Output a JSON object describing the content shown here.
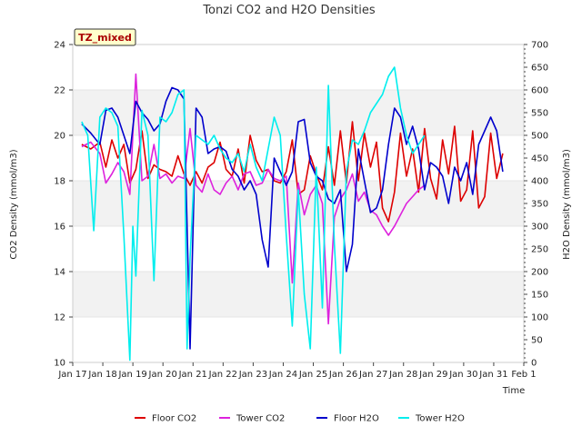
{
  "chart_data": {
    "type": "line",
    "title": "Tonzi CO2 and H2O Densities",
    "badge": "TZ_mixed",
    "xlabel": "Time",
    "ylabel_left": "CO2 Density (mmol/m3)",
    "ylabel_right": "H2O Density (mmol/m3)",
    "x_ticks": [
      "Jan 17",
      "Jan 18",
      "Jan 19",
      "Jan 20",
      "Jan 21",
      "Jan 22",
      "Jan 23",
      "Jan 24",
      "Jan 25",
      "Jan 26",
      "Jan 27",
      "Jan 28",
      "Jan 29",
      "Jan 30",
      "Jan 31",
      "Feb 1"
    ],
    "x_unit": "days since Jan 17",
    "xlim": [
      0,
      15
    ],
    "ylim_left": [
      10,
      24
    ],
    "ylim_right": [
      0,
      700
    ],
    "yticks_left": [
      "10",
      "12",
      "14",
      "16",
      "18",
      "20",
      "22",
      "24"
    ],
    "yticks_right": [
      "0",
      "50",
      "100",
      "150",
      "200",
      "250",
      "300",
      "350",
      "400",
      "450",
      "500",
      "550",
      "600",
      "650",
      "700"
    ],
    "grid_bands": true,
    "legend_position": "bottom",
    "series": [
      {
        "name": "Floor CO2",
        "axis": "left",
        "color": "#dd0000",
        "x": [
          0.3,
          0.6,
          0.9,
          1.1,
          1.3,
          1.5,
          1.7,
          1.9,
          2.1,
          2.3,
          2.5,
          2.7,
          2.9,
          3.1,
          3.3,
          3.5,
          3.7,
          3.9,
          4.1,
          4.3,
          4.5,
          4.7,
          4.9,
          5.1,
          5.3,
          5.5,
          5.7,
          5.9,
          6.1,
          6.3,
          6.5,
          6.7,
          6.9,
          7.1,
          7.3,
          7.5,
          7.7,
          7.9,
          8.1,
          8.3,
          8.5,
          8.7,
          8.9,
          9.1,
          9.3,
          9.5,
          9.7,
          9.9,
          10.1,
          10.3,
          10.5,
          10.7,
          10.9,
          11.1,
          11.3,
          11.5,
          11.7,
          11.9,
          12.1,
          12.3,
          12.5,
          12.7,
          12.9,
          13.1,
          13.3,
          13.5,
          13.7,
          13.9,
          14.1,
          14.3
        ],
        "y": [
          19.6,
          19.4,
          19.7,
          18.6,
          19.8,
          19.0,
          19.6,
          17.9,
          18.5,
          20.2,
          18.1,
          18.7,
          18.5,
          18.4,
          18.2,
          19.1,
          18.3,
          17.8,
          18.4,
          17.9,
          18.6,
          18.8,
          19.7,
          18.5,
          18.2,
          19.4,
          17.9,
          20.0,
          18.9,
          18.4,
          18.5,
          18.0,
          17.9,
          18.4,
          19.8,
          17.4,
          17.6,
          19.1,
          18.3,
          17.6,
          19.5,
          17.8,
          20.2,
          17.9,
          20.6,
          18.0,
          20.1,
          18.6,
          19.7,
          16.8,
          16.2,
          17.5,
          20.1,
          18.2,
          19.4,
          17.5,
          20.3,
          18.1,
          17.2,
          19.8,
          18.3,
          20.4,
          17.1,
          17.6,
          20.2,
          16.8,
          17.3,
          20.1,
          18.1,
          19.2
        ]
      },
      {
        "name": "Tower CO2",
        "axis": "left",
        "color": "#dd22dd",
        "x": [
          0.3,
          0.6,
          0.9,
          1.1,
          1.3,
          1.5,
          1.7,
          1.9,
          2.1,
          2.3,
          2.5,
          2.7,
          2.9,
          3.1,
          3.3,
          3.5,
          3.7,
          3.9,
          4.1,
          4.3,
          4.5,
          4.7,
          4.9,
          5.1,
          5.3,
          5.5,
          5.7,
          5.9,
          6.1,
          6.3,
          6.5,
          6.7,
          6.9,
          7.1,
          7.3,
          7.5,
          7.7,
          7.9,
          8.1,
          8.3,
          8.5,
          8.7,
          8.9,
          9.1,
          9.3,
          9.5,
          9.7,
          9.9,
          10.1,
          10.3,
          10.5,
          10.7,
          10.9,
          11.1,
          11.3,
          11.5,
          11.7
        ],
        "y": [
          19.5,
          19.7,
          19.2,
          17.9,
          18.3,
          18.8,
          18.4,
          17.4,
          22.7,
          18.0,
          18.2,
          19.6,
          18.1,
          18.3,
          17.9,
          18.2,
          18.1,
          20.3,
          17.8,
          17.5,
          18.3,
          17.6,
          17.4,
          17.9,
          18.2,
          17.6,
          18.3,
          18.4,
          17.8,
          17.9,
          18.5,
          18.1,
          18.0,
          18.2,
          13.5,
          17.9,
          16.5,
          17.4,
          17.8,
          17.0,
          11.7,
          16.4,
          17.2,
          17.6,
          18.3,
          17.1,
          17.5,
          16.7,
          16.5,
          16.0,
          15.6,
          16.0,
          16.5,
          17.0,
          17.3,
          17.6,
          17.8
        ]
      },
      {
        "name": "Floor H2O",
        "axis": "right",
        "color": "#0000cc",
        "x": [
          0.3,
          0.6,
          0.9,
          1.1,
          1.3,
          1.5,
          1.7,
          1.9,
          2.1,
          2.3,
          2.5,
          2.7,
          2.9,
          3.1,
          3.3,
          3.5,
          3.7,
          3.9,
          4.1,
          4.3,
          4.5,
          4.7,
          4.9,
          5.1,
          5.3,
          5.5,
          5.7,
          5.9,
          6.1,
          6.3,
          6.5,
          6.7,
          6.9,
          7.1,
          7.3,
          7.5,
          7.7,
          7.9,
          8.1,
          8.3,
          8.5,
          8.7,
          8.9,
          9.1,
          9.3,
          9.5,
          9.7,
          9.9,
          10.1,
          10.3,
          10.5,
          10.7,
          10.9,
          11.1,
          11.3,
          11.5,
          11.7,
          11.9,
          12.1,
          12.3,
          12.5,
          12.7,
          12.9,
          13.1,
          13.3,
          13.5,
          13.7,
          13.9,
          14.1,
          14.3
        ],
        "y": [
          525,
          505,
          480,
          555,
          560,
          540,
          500,
          460,
          575,
          550,
          535,
          510,
          525,
          575,
          605,
          600,
          580,
          30,
          560,
          540,
          460,
          470,
          475,
          465,
          425,
          410,
          380,
          400,
          370,
          270,
          210,
          450,
          420,
          390,
          420,
          530,
          535,
          440,
          410,
          400,
          360,
          350,
          380,
          200,
          260,
          470,
          400,
          330,
          340,
          380,
          480,
          560,
          540,
          480,
          520,
          470,
          380,
          440,
          430,
          410,
          350,
          430,
          400,
          440,
          370,
          480,
          510,
          540,
          510,
          420
        ]
      },
      {
        "name": "Tower H2O",
        "axis": "right",
        "color": "#00eeee",
        "x": [
          0.3,
          0.5,
          0.7,
          0.9,
          1.1,
          1.3,
          1.5,
          1.7,
          1.9,
          2.0,
          2.1,
          2.3,
          2.5,
          2.7,
          2.9,
          3.1,
          3.3,
          3.5,
          3.7,
          3.8,
          3.9,
          4.1,
          4.3,
          4.5,
          4.7,
          4.9,
          5.1,
          5.3,
          5.5,
          5.7,
          5.9,
          6.1,
          6.3,
          6.5,
          6.7,
          6.9,
          7.1,
          7.3,
          7.5,
          7.7,
          7.9,
          8.1,
          8.3,
          8.5,
          8.7,
          8.9,
          9.1,
          9.3,
          9.5,
          9.7,
          9.9,
          10.1,
          10.3,
          10.5,
          10.7,
          10.9,
          11.1,
          11.3,
          11.5,
          11.7
        ],
        "y": [
          530,
          500,
          290,
          540,
          560,
          550,
          520,
          280,
          5,
          300,
          190,
          555,
          500,
          180,
          540,
          530,
          550,
          590,
          600,
          30,
          230,
          500,
          490,
          480,
          500,
          470,
          450,
          440,
          460,
          420,
          480,
          430,
          400,
          470,
          540,
          500,
          280,
          80,
          380,
          150,
          30,
          430,
          120,
          610,
          260,
          20,
          420,
          490,
          480,
          510,
          550,
          570,
          590,
          630,
          650,
          560,
          500,
          460,
          480,
          500
        ]
      }
    ]
  }
}
